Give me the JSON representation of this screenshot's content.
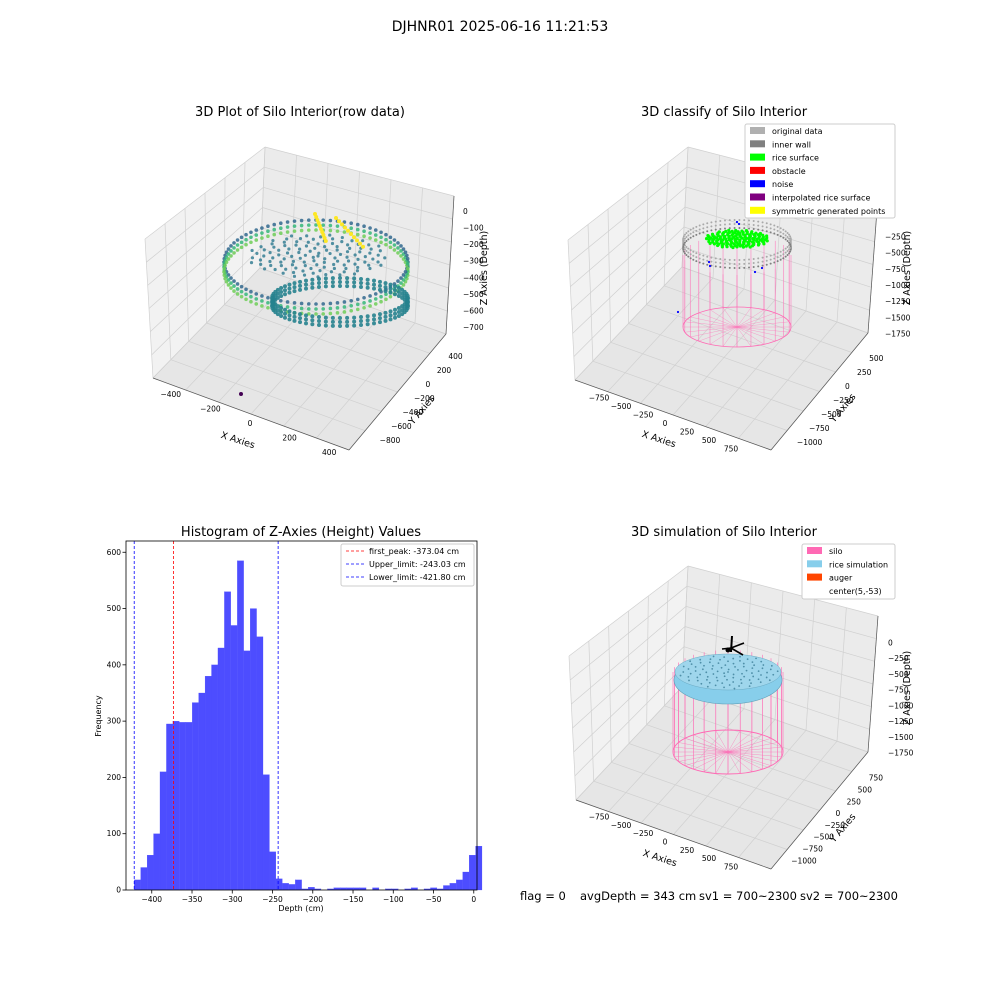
{
  "figure": {
    "suptitle": "DJHNR01 2025-06-16 11:21:53"
  },
  "status_bar": {
    "flag": "flag = 0",
    "avg_depth": "avgDepth = 343 cm",
    "sv1": "sv1 = 700~2300",
    "sv2": "sv2 = 700~2300"
  },
  "colors": {
    "histogram_bar": "#4d4dff",
    "first_peak_line": "#ff0000",
    "limit_lines": "#0000ff",
    "silo": "#ff69b4",
    "rice_simulation": "#87ceeb",
    "auger": "#ff4500",
    "rice_surface": "#00ff00",
    "inner_wall": "#808080",
    "original_data": "#b0b0b0",
    "noise": "#0000ff",
    "obstacle": "#ff0000",
    "interpolated_rice_surface": "#800080",
    "symmetric_points": "#ffff00"
  },
  "chart_data": [
    {
      "type": "scatter",
      "projection": "3d",
      "title": "3D Plot of Silo Interior(row data)",
      "xlabel": "X Axies",
      "ylabel": "Y Axies",
      "zlabel": "Z Axies (Depth)",
      "xticks": [
        "−400",
        "−200",
        "0",
        "200",
        "400"
      ],
      "yticks": [
        "−800",
        "−600",
        "−400",
        "−200",
        "0",
        "200",
        "400"
      ],
      "zticks": [
        "0",
        "−100",
        "−200",
        "−300",
        "−400",
        "−500",
        "−600",
        "−700"
      ],
      "xlim": [
        -480,
        480
      ],
      "ylim": [
        -880,
        480
      ],
      "zlim": [
        -730,
        20
      ],
      "colormap": "viridis",
      "grid": true
    },
    {
      "type": "scatter",
      "projection": "3d",
      "title": "3D classify of Silo Interior",
      "xlabel": "X Axies",
      "ylabel": "Y Axies",
      "zlabel": "Z Axies (Depth)",
      "xticks": [
        "−750",
        "−500",
        "−250",
        "0",
        "250",
        "500",
        "750"
      ],
      "yticks": [
        "−1000",
        "−750",
        "−500",
        "−250",
        "0",
        "250",
        "500"
      ],
      "zticks": [
        "−250",
        "−500",
        "−750",
        "−1000",
        "−1250",
        "−1500",
        "−1750"
      ],
      "legend_position": "upper-right",
      "legend": [
        {
          "label": "original data",
          "color": "#b0b0b0"
        },
        {
          "label": "inner wall",
          "color": "#808080"
        },
        {
          "label": "rice surface",
          "color": "#00ff00"
        },
        {
          "label": "obstacle",
          "color": "#ff0000"
        },
        {
          "label": "noise",
          "color": "#0000ff"
        },
        {
          "label": "interpolated rice surface",
          "color": "#800080"
        },
        {
          "label": "symmetric generated points",
          "color": "#ffff00"
        }
      ],
      "grid": true
    },
    {
      "type": "bar",
      "subtype": "histogram",
      "title": "Histogram of Z-Axies (Height) Values",
      "xlabel": "Depth (cm)",
      "ylabel": "Frequency",
      "xlim": [
        -432,
        4
      ],
      "ylim": [
        0,
        620
      ],
      "xticks": [
        -400,
        -350,
        -300,
        -250,
        -200,
        -150,
        -100,
        -50,
        0
      ],
      "xtick_labels": [
        "−400",
        "−350",
        "−300",
        "−250",
        "−200",
        "−150",
        "−100",
        "−50",
        "0"
      ],
      "yticks": [
        0,
        100,
        200,
        300,
        400,
        500,
        600
      ],
      "yticks_labels": [
        "0",
        "100",
        "200",
        "300",
        "400",
        "500",
        "600"
      ],
      "bin_start": -421.8,
      "bin_width": 8.0,
      "values": [
        18,
        40,
        62,
        100,
        210,
        295,
        300,
        298,
        298,
        333,
        350,
        380,
        400,
        430,
        530,
        470,
        585,
        425,
        500,
        450,
        205,
        68,
        20,
        12,
        10,
        18,
        2,
        5,
        2,
        0,
        2,
        4,
        4,
        4,
        4,
        4,
        0,
        4,
        0,
        2,
        2,
        0,
        2,
        4,
        0,
        2,
        4,
        2,
        8,
        12,
        18,
        32,
        62,
        78
      ],
      "reference_lines": [
        {
          "label": "first_peak: -373.04 cm",
          "value": -373.04,
          "color": "#ff0000"
        },
        {
          "label": "Upper_limit: -243.03 cm",
          "value": -243.03,
          "color": "#0000ff"
        },
        {
          "label": "Lower_limit: -421.80 cm",
          "value": -421.8,
          "color": "#0000ff"
        }
      ],
      "legend_position": "upper-right",
      "grid": false
    },
    {
      "type": "scatter",
      "projection": "3d",
      "title": "3D simulation of Silo Interior",
      "xlabel": "X Axies",
      "ylabel": "Y Axies",
      "zlabel": "Z Axies (Depth)",
      "xticks": [
        "−750",
        "−500",
        "−250",
        "0",
        "250",
        "500",
        "750"
      ],
      "yticks": [
        "−1000",
        "−750",
        "−500",
        "−250",
        "0",
        "250",
        "500",
        "750"
      ],
      "zticks": [
        "0",
        "−250",
        "−500",
        "−750",
        "−1000",
        "−1250",
        "−1500",
        "−1750"
      ],
      "legend_position": "upper-right",
      "legend": [
        {
          "label": "silo",
          "color": "#ff69b4"
        },
        {
          "label": "rice simulation",
          "color": "#87ceeb"
        },
        {
          "label": "auger",
          "color": "#ff4500"
        },
        {
          "label": "center(5,-53)",
          "color": ""
        }
      ],
      "grid": true
    }
  ]
}
